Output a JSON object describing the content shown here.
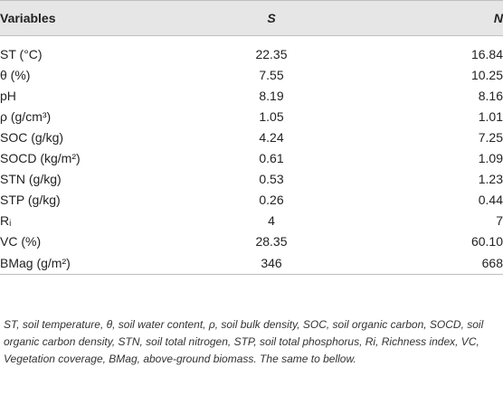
{
  "table": {
    "headers": {
      "variables": "Variables",
      "s": "S",
      "n": "N"
    },
    "rows": [
      {
        "var": "ST (°C)",
        "s": "22.35",
        "n": "16.84"
      },
      {
        "var": "θ (%)",
        "s": "7.55",
        "n": "10.25"
      },
      {
        "var": "pH",
        "s": "8.19",
        "n": "8.16"
      },
      {
        "var": "ρ (g/cm³)",
        "s": "1.05",
        "n": "1.01"
      },
      {
        "var": "SOC (g/kg)",
        "s": "4.24",
        "n": "7.25"
      },
      {
        "var": "SOCD (kg/m²)",
        "s": "0.61",
        "n": "1.09"
      },
      {
        "var": "STN (g/kg)",
        "s": "0.53",
        "n": "1.23"
      },
      {
        "var": "STP (g/kg)",
        "s": "0.26",
        "n": "0.44"
      },
      {
        "var": "Rᵢ",
        "s": "4",
        "n": "7"
      },
      {
        "var": "VC (%)",
        "s": "28.35",
        "n": "60.10"
      },
      {
        "var": "BMag (g/m²)",
        "s": "346",
        "n": "668"
      }
    ]
  },
  "footnote": "ST, soil temperature, θ, soil water content, ρ, soil bulk density, SOC, soil organic carbon, SOCD, soil organic carbon density, STN, soil total nitrogen, STP, soil total phosphorus, Ri, Richness index, VC, Vegetation coverage, BMag, above-ground biomass. The same to bellow."
}
